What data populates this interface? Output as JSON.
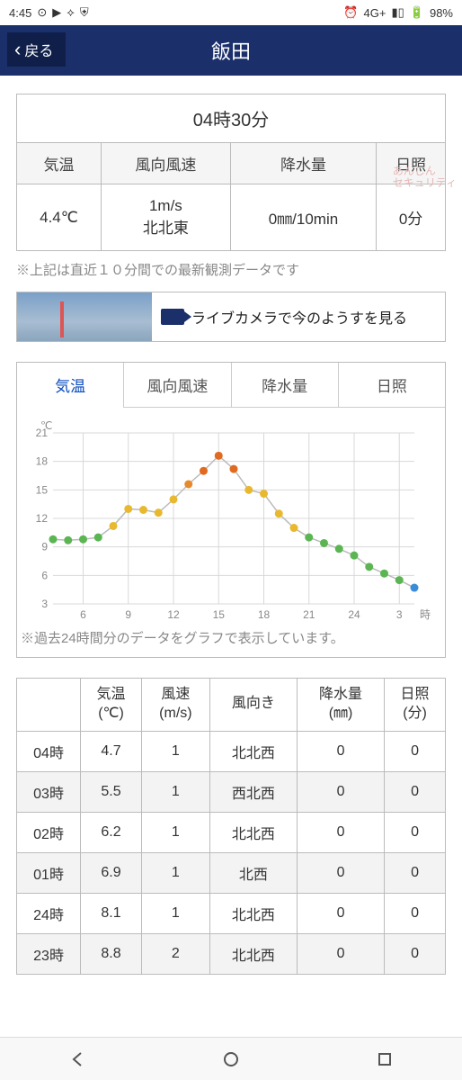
{
  "status": {
    "time": "4:45",
    "network": "4G+",
    "battery": "98%"
  },
  "header": {
    "back": "戻る",
    "title": "飯田"
  },
  "obs": {
    "time": "04時30分",
    "headers": [
      "気温",
      "風向風速",
      "降水量",
      "日照"
    ],
    "values": [
      "4.4℃",
      "1m/s\n北北東",
      "0㎜/10min",
      "0分"
    ]
  },
  "note1": "※上記は直近１０分間での最新観測データです",
  "livecam": "ライブカメラで今のようすを見る",
  "tabs": [
    "気温",
    "風向風速",
    "降水量",
    "日照"
  ],
  "chart": {
    "unit": "℃",
    "ylim": [
      3,
      21
    ],
    "ytick_step": 3,
    "yticks": [
      3,
      6,
      9,
      12,
      15,
      18,
      21
    ],
    "xticks": [
      6,
      9,
      12,
      15,
      18,
      21,
      24,
      3
    ],
    "xunit": "時",
    "grid_color": "#d8d8d8",
    "line_color": "#bbbbbb",
    "background_color": "#ffffff",
    "points": [
      {
        "x": 4,
        "y": 9.8,
        "c": "#5ab552"
      },
      {
        "x": 5,
        "y": 9.7,
        "c": "#5ab552"
      },
      {
        "x": 6,
        "y": 9.8,
        "c": "#5ab552"
      },
      {
        "x": 7,
        "y": 10.0,
        "c": "#5ab552"
      },
      {
        "x": 8,
        "y": 11.2,
        "c": "#e8b92e"
      },
      {
        "x": 9,
        "y": 13.0,
        "c": "#e8b92e"
      },
      {
        "x": 10,
        "y": 12.9,
        "c": "#e8b92e"
      },
      {
        "x": 11,
        "y": 12.6,
        "c": "#e8b92e"
      },
      {
        "x": 12,
        "y": 14.0,
        "c": "#e8b92e"
      },
      {
        "x": 13,
        "y": 15.6,
        "c": "#e68a2e"
      },
      {
        "x": 14,
        "y": 17.0,
        "c": "#e06a1e"
      },
      {
        "x": 15,
        "y": 18.6,
        "c": "#e06a1e"
      },
      {
        "x": 16,
        "y": 17.2,
        "c": "#e06a1e"
      },
      {
        "x": 17,
        "y": 15.0,
        "c": "#e8b92e"
      },
      {
        "x": 18,
        "y": 14.6,
        "c": "#e8b92e"
      },
      {
        "x": 19,
        "y": 12.5,
        "c": "#e8b92e"
      },
      {
        "x": 20,
        "y": 11.0,
        "c": "#e8b92e"
      },
      {
        "x": 21,
        "y": 10.0,
        "c": "#5ab552"
      },
      {
        "x": 22,
        "y": 9.4,
        "c": "#5ab552"
      },
      {
        "x": 23,
        "y": 8.8,
        "c": "#5ab552"
      },
      {
        "x": 24,
        "y": 8.1,
        "c": "#5ab552"
      },
      {
        "x": 25,
        "y": 6.9,
        "c": "#5ab552"
      },
      {
        "x": 26,
        "y": 6.2,
        "c": "#5ab552"
      },
      {
        "x": 27,
        "y": 5.5,
        "c": "#5ab552"
      },
      {
        "x": 28,
        "y": 4.7,
        "c": "#3a8bd8"
      }
    ]
  },
  "note2": "※過去24時間分のデータをグラフで表示しています。",
  "hourly": {
    "headers": [
      "",
      "気温\n(℃)",
      "風速\n(m/s)",
      "風向き",
      "降水量\n(㎜)",
      "日照\n(分)"
    ],
    "rows": [
      [
        "04時",
        "4.7",
        "1",
        "北北西",
        "0",
        "0"
      ],
      [
        "03時",
        "5.5",
        "1",
        "西北西",
        "0",
        "0"
      ],
      [
        "02時",
        "6.2",
        "1",
        "北北西",
        "0",
        "0"
      ],
      [
        "01時",
        "6.9",
        "1",
        "北西",
        "0",
        "0"
      ],
      [
        "24時",
        "8.1",
        "1",
        "北北西",
        "0",
        "0"
      ],
      [
        "23時",
        "8.8",
        "2",
        "北北西",
        "0",
        "0"
      ]
    ]
  },
  "watermark": "あんしん\nセキュリティ"
}
